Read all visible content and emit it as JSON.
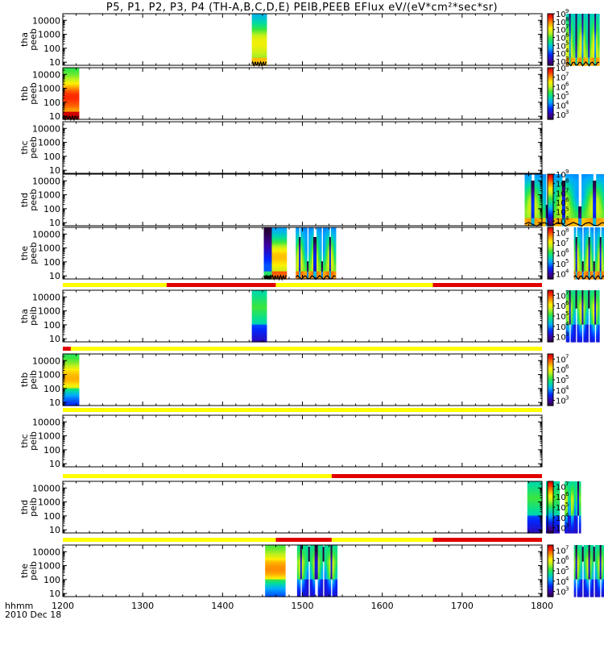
{
  "chart_data": {
    "type": "heatmap",
    "title": "P5, P1, P2, P3, P4 (TH-A,B,C,D,E) PEIB,PEEB EFlux eV/(eV*cm²*sec*sr)",
    "xlabel_top": "hhmm",
    "xlabel_bottom": "2010 Dec 18",
    "x_ticks": [
      "1200",
      "1300",
      "1400",
      "1500",
      "1600",
      "1700",
      "1800"
    ],
    "x_range_minutes": [
      720,
      1080
    ],
    "y_scale": "log",
    "y_range": [
      6,
      30000
    ],
    "y_ticks": [
      "10",
      "100",
      "1000",
      "10000"
    ],
    "colormap": "rainbow",
    "mode_bar_colors": {
      "fast_survey": "#ffff00",
      "slow_survey": "#e00000"
    },
    "panels": [
      {
        "label_line1": "tha",
        "label_line2": "peeb",
        "colorbar_exponents": [
          "3",
          "4",
          "5",
          "6",
          "7",
          "8",
          "9"
        ],
        "color_range_exp": [
          2.5,
          9
        ],
        "spectrum": "electron",
        "segments": [
          {
            "start": 862,
            "end": 873,
            "base": 6.3,
            "style": "hot"
          },
          {
            "start": 1098,
            "end": 1123,
            "base": 6.6,
            "style": "stripes"
          }
        ]
      },
      {
        "label_line1": "thb",
        "label_line2": "peeb",
        "colorbar_exponents": [
          "3",
          "4",
          "5",
          "6",
          "7",
          "8"
        ],
        "color_range_exp": [
          2.5,
          8
        ],
        "spectrum": "electron",
        "segments": [
          {
            "start": 720,
            "end": 732,
            "base": 6.8,
            "style": "hot"
          }
        ]
      },
      {
        "label_line1": "thc",
        "label_line2": "peeb",
        "colorbar_exponents": [],
        "color_range_exp": [
          3,
          8
        ],
        "spectrum": "electron",
        "segments": []
      },
      {
        "label_line1": "thd",
        "label_line2": "peeb",
        "colorbar_exponents": [
          "4",
          "5",
          "6",
          "7",
          "8",
          "9"
        ],
        "color_range_exp": [
          3.5,
          9
        ],
        "spectrum": "electron",
        "segments": [
          {
            "start": 1067,
            "end": 1128,
            "base": 6.7,
            "style": "stripes"
          }
        ]
      },
      {
        "label_line1": "the",
        "label_line2": "peeb",
        "colorbar_exponents": [
          "4",
          "5",
          "6",
          "7",
          "8"
        ],
        "color_range_exp": [
          3.5,
          8.5
        ],
        "spectrum": "electron",
        "segments": [
          {
            "start": 871,
            "end": 877,
            "base": 5.8,
            "style": "cool"
          },
          {
            "start": 877,
            "end": 888,
            "base": 6.6,
            "style": "hot"
          },
          {
            "start": 895,
            "end": 925,
            "base": 6.5,
            "style": "stripes"
          },
          {
            "start": 1104,
            "end": 1127,
            "base": 6.5,
            "style": "stripes"
          }
        ]
      },
      {
        "label_line1": "tha",
        "label_line2": "peib",
        "colorbar_exponents": [
          "3",
          "4",
          "5",
          "6",
          "7"
        ],
        "color_range_exp": [
          2.5,
          7.5
        ],
        "spectrum": "ion",
        "mode_bar": [
          {
            "start": 720,
            "end": 798,
            "mode": "fast_survey"
          },
          {
            "start": 798,
            "end": 880,
            "mode": "slow_survey"
          },
          {
            "start": 880,
            "end": 998,
            "mode": "fast_survey"
          },
          {
            "start": 998,
            "end": 1080,
            "mode": "slow_survey"
          }
        ],
        "segments": [
          {
            "start": 862,
            "end": 873,
            "base": 5.2,
            "style": "ion"
          },
          {
            "start": 1098,
            "end": 1123,
            "base": 5.4,
            "style": "ion_stripes"
          }
        ]
      },
      {
        "label_line1": "thb",
        "label_line2": "peib",
        "colorbar_exponents": [
          "3",
          "4",
          "5",
          "6",
          "7"
        ],
        "color_range_exp": [
          2.5,
          7.5
        ],
        "spectrum": "ion",
        "mode_bar": [
          {
            "start": 720,
            "end": 726,
            "mode": "slow_survey"
          },
          {
            "start": 726,
            "end": 1080,
            "mode": "fast_survey"
          }
        ],
        "segments": [
          {
            "start": 720,
            "end": 732,
            "base": 5.6,
            "style": "hot"
          }
        ]
      },
      {
        "label_line1": "thc",
        "label_line2": "peib",
        "colorbar_exponents": [],
        "color_range_exp": [
          3,
          7
        ],
        "spectrum": "ion",
        "mode_bar": [
          {
            "start": 720,
            "end": 1080,
            "mode": "fast_survey"
          }
        ],
        "segments": []
      },
      {
        "label_line1": "thd",
        "label_line2": "peib",
        "colorbar_exponents": [
          "3",
          "4",
          "5",
          "6",
          "7"
        ],
        "color_range_exp": [
          2.5,
          7.5
        ],
        "spectrum": "ion",
        "mode_bar": [
          {
            "start": 720,
            "end": 922,
            "mode": "fast_survey"
          },
          {
            "start": 922,
            "end": 1080,
            "mode": "slow_survey"
          }
        ],
        "segments": [
          {
            "start": 1069,
            "end": 1080,
            "base": 5.2,
            "style": "ion"
          },
          {
            "start": 1083,
            "end": 1093,
            "base": 5.2,
            "style": "ion"
          },
          {
            "start": 1097,
            "end": 1109,
            "base": 5.3,
            "style": "ion_stripes"
          }
        ]
      },
      {
        "label_line1": "the",
        "label_line2": "peib",
        "colorbar_exponents": [
          "3",
          "4",
          "5",
          "6",
          "7"
        ],
        "color_range_exp": [
          2.5,
          7.5
        ],
        "spectrum": "ion",
        "mode_bar": [
          {
            "start": 720,
            "end": 880,
            "mode": "fast_survey"
          },
          {
            "start": 880,
            "end": 922,
            "mode": "slow_survey"
          },
          {
            "start": 922,
            "end": 998,
            "mode": "fast_survey"
          },
          {
            "start": 998,
            "end": 1080,
            "mode": "slow_survey"
          }
        ],
        "segments": [
          {
            "start": 872,
            "end": 887,
            "base": 5.8,
            "style": "hot"
          },
          {
            "start": 896,
            "end": 926,
            "base": 5.3,
            "style": "ion_stripes"
          },
          {
            "start": 1104,
            "end": 1127,
            "base": 5.3,
            "style": "ion_stripes"
          }
        ]
      }
    ]
  }
}
